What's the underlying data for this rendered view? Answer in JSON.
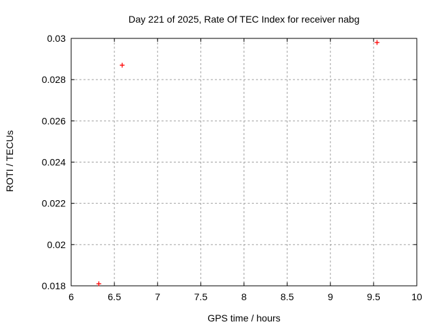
{
  "page": {
    "title": "Day 221 of 2025, Rate Of TEC Index for receiver nabg"
  },
  "chart_data": {
    "type": "scatter",
    "title": "Day 221 of 2025, Rate Of TEC Index for receiver nabg",
    "xlabel": "GPS time / hours",
    "ylabel": "ROTI / TECUs",
    "xlim": [
      6,
      10
    ],
    "ylim": [
      0.018,
      0.03
    ],
    "x_ticks": [
      6,
      6.5,
      7,
      7.5,
      8,
      8.5,
      9,
      9.5,
      10
    ],
    "x_tick_labels": [
      "6",
      "6.5",
      "7",
      "7.5",
      "8",
      "8.5",
      "9",
      "9.5",
      "10"
    ],
    "y_ticks": [
      0.018,
      0.02,
      0.022,
      0.024,
      0.026,
      0.028,
      0.03
    ],
    "y_tick_labels": [
      "0.018",
      "0.02",
      "0.022",
      "0.024",
      "0.026",
      "0.028",
      "0.03"
    ],
    "grid": true,
    "grid_style": "dashed",
    "legend": "none",
    "series": [
      {
        "name": "ROTI",
        "marker": "plus",
        "color": "#ff0000",
        "points": [
          [
            6.32,
            0.0181
          ],
          [
            6.59,
            0.0287
          ],
          [
            9.54,
            0.0298
          ]
        ]
      }
    ],
    "colors": {
      "marker": "#ff0000",
      "grid": "#a0a0a0",
      "axis": "#000000",
      "text": "#000000",
      "background": "#ffffff"
    }
  }
}
